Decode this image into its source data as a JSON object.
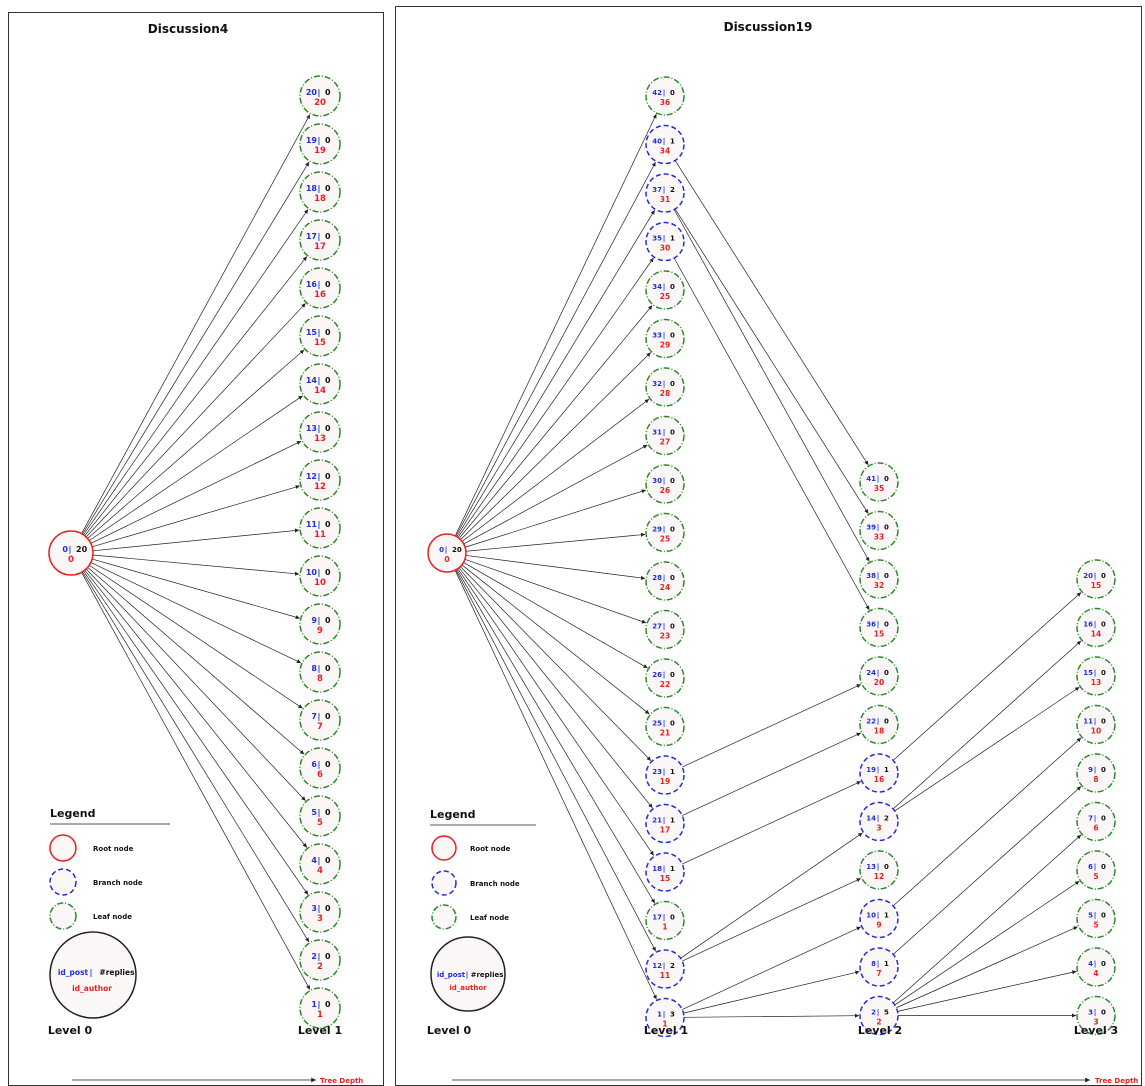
{
  "panels": [
    {
      "title": "Discussion4",
      "level_labels": [
        "Level 0",
        "Level 1"
      ],
      "nodes": [
        {
          "id": "0",
          "replies": "20",
          "author": "0",
          "type": "root"
        },
        {
          "id": "20",
          "replies": "0",
          "author": "20",
          "type": "leaf"
        },
        {
          "id": "19",
          "replies": "0",
          "author": "19",
          "type": "leaf"
        },
        {
          "id": "18",
          "replies": "0",
          "author": "18",
          "type": "leaf"
        },
        {
          "id": "17",
          "replies": "0",
          "author": "17",
          "type": "leaf"
        },
        {
          "id": "16",
          "replies": "0",
          "author": "16",
          "type": "leaf"
        },
        {
          "id": "15",
          "replies": "0",
          "author": "15",
          "type": "leaf"
        },
        {
          "id": "14",
          "replies": "0",
          "author": "14",
          "type": "leaf"
        },
        {
          "id": "13",
          "replies": "0",
          "author": "13",
          "type": "leaf"
        },
        {
          "id": "12",
          "replies": "0",
          "author": "12",
          "type": "leaf"
        },
        {
          "id": "11",
          "replies": "0",
          "author": "11",
          "type": "leaf"
        },
        {
          "id": "10",
          "replies": "0",
          "author": "10",
          "type": "leaf"
        },
        {
          "id": "9",
          "replies": "0",
          "author": "9",
          "type": "leaf"
        },
        {
          "id": "8",
          "replies": "0",
          "author": "8",
          "type": "leaf"
        },
        {
          "id": "7",
          "replies": "0",
          "author": "7",
          "type": "leaf"
        },
        {
          "id": "6",
          "replies": "0",
          "author": "6",
          "type": "leaf"
        },
        {
          "id": "5",
          "replies": "0",
          "author": "5",
          "type": "leaf"
        },
        {
          "id": "4",
          "replies": "0",
          "author": "4",
          "type": "leaf"
        },
        {
          "id": "3",
          "replies": "0",
          "author": "3",
          "type": "leaf"
        },
        {
          "id": "2",
          "replies": "0",
          "author": "2",
          "type": "leaf"
        },
        {
          "id": "1",
          "replies": "0",
          "author": "1",
          "type": "leaf"
        }
      ],
      "edges": [
        [
          "0",
          "20"
        ],
        [
          "0",
          "19"
        ],
        [
          "0",
          "18"
        ],
        [
          "0",
          "17"
        ],
        [
          "0",
          "16"
        ],
        [
          "0",
          "15"
        ],
        [
          "0",
          "14"
        ],
        [
          "0",
          "13"
        ],
        [
          "0",
          "12"
        ],
        [
          "0",
          "11"
        ],
        [
          "0",
          "10"
        ],
        [
          "0",
          "9"
        ],
        [
          "0",
          "8"
        ],
        [
          "0",
          "7"
        ],
        [
          "0",
          "6"
        ],
        [
          "0",
          "5"
        ],
        [
          "0",
          "4"
        ],
        [
          "0",
          "3"
        ],
        [
          "0",
          "2"
        ],
        [
          "0",
          "1"
        ]
      ]
    },
    {
      "title": "Discussion19",
      "level_labels": [
        "Level 0",
        "Level 1",
        "Level 2",
        "Level 3"
      ],
      "nodes": [
        {
          "id": "0",
          "replies": "20",
          "author": "0",
          "type": "root"
        },
        {
          "id": "42",
          "replies": "0",
          "author": "36",
          "type": "leaf"
        },
        {
          "id": "40",
          "replies": "1",
          "author": "34",
          "type": "branch"
        },
        {
          "id": "37",
          "replies": "2",
          "author": "31",
          "type": "branch"
        },
        {
          "id": "35",
          "replies": "1",
          "author": "30",
          "type": "branch"
        },
        {
          "id": "34",
          "replies": "0",
          "author": "25",
          "type": "leaf"
        },
        {
          "id": "33",
          "replies": "0",
          "author": "29",
          "type": "leaf"
        },
        {
          "id": "32",
          "replies": "0",
          "author": "28",
          "type": "leaf"
        },
        {
          "id": "31",
          "replies": "0",
          "author": "27",
          "type": "leaf"
        },
        {
          "id": "30",
          "replies": "0",
          "author": "26",
          "type": "leaf"
        },
        {
          "id": "29",
          "replies": "0",
          "author": "25",
          "type": "leaf"
        },
        {
          "id": "28",
          "replies": "0",
          "author": "24",
          "type": "leaf"
        },
        {
          "id": "27",
          "replies": "0",
          "author": "23",
          "type": "leaf"
        },
        {
          "id": "26",
          "replies": "0",
          "author": "22",
          "type": "leaf"
        },
        {
          "id": "25",
          "replies": "0",
          "author": "21",
          "type": "leaf"
        },
        {
          "id": "23",
          "replies": "1",
          "author": "19",
          "type": "branch"
        },
        {
          "id": "21",
          "replies": "1",
          "author": "17",
          "type": "branch"
        },
        {
          "id": "18",
          "replies": "1",
          "author": "15",
          "type": "branch"
        },
        {
          "id": "17",
          "replies": "0",
          "author": "1",
          "type": "leaf"
        },
        {
          "id": "12",
          "replies": "2",
          "author": "11",
          "type": "branch"
        },
        {
          "id": "1",
          "replies": "3",
          "author": "1",
          "type": "branch"
        },
        {
          "id": "41",
          "replies": "0",
          "author": "35",
          "type": "leaf"
        },
        {
          "id": "39",
          "replies": "0",
          "author": "33",
          "type": "leaf"
        },
        {
          "id": "38",
          "replies": "0",
          "author": "32",
          "type": "leaf"
        },
        {
          "id": "36",
          "replies": "0",
          "author": "15",
          "type": "leaf"
        },
        {
          "id": "24",
          "replies": "0",
          "author": "20",
          "type": "leaf"
        },
        {
          "id": "22",
          "replies": "0",
          "author": "18",
          "type": "leaf"
        },
        {
          "id": "19",
          "replies": "1",
          "author": "16",
          "type": "branch"
        },
        {
          "id": "14",
          "replies": "2",
          "author": "3",
          "type": "branch"
        },
        {
          "id": "13",
          "replies": "0",
          "author": "12",
          "type": "leaf"
        },
        {
          "id": "10",
          "replies": "1",
          "author": "9",
          "type": "branch"
        },
        {
          "id": "8",
          "replies": "1",
          "author": "7",
          "type": "branch"
        },
        {
          "id": "2",
          "replies": "5",
          "author": "2",
          "type": "branch"
        },
        {
          "id": "20",
          "replies": "0",
          "author": "15",
          "type": "leaf"
        },
        {
          "id": "16",
          "replies": "0",
          "author": "14",
          "type": "leaf"
        },
        {
          "id": "15",
          "replies": "0",
          "author": "13",
          "type": "leaf"
        },
        {
          "id": "11",
          "replies": "0",
          "author": "10",
          "type": "leaf"
        },
        {
          "id": "9",
          "replies": "0",
          "author": "8",
          "type": "leaf"
        },
        {
          "id": "7",
          "replies": "0",
          "author": "6",
          "type": "leaf"
        },
        {
          "id": "6",
          "replies": "0",
          "author": "5",
          "type": "leaf"
        },
        {
          "id": "5",
          "replies": "0",
          "author": "5",
          "type": "leaf"
        },
        {
          "id": "4",
          "replies": "0",
          "author": "4",
          "type": "leaf"
        },
        {
          "id": "3",
          "replies": "0",
          "author": "3",
          "type": "leaf"
        }
      ],
      "edges": [
        [
          "0",
          "42"
        ],
        [
          "0",
          "40"
        ],
        [
          "0",
          "37"
        ],
        [
          "0",
          "35"
        ],
        [
          "0",
          "34"
        ],
        [
          "0",
          "33"
        ],
        [
          "0",
          "32"
        ],
        [
          "0",
          "31"
        ],
        [
          "0",
          "30"
        ],
        [
          "0",
          "29"
        ],
        [
          "0",
          "28"
        ],
        [
          "0",
          "27"
        ],
        [
          "0",
          "26"
        ],
        [
          "0",
          "25"
        ],
        [
          "0",
          "23"
        ],
        [
          "0",
          "21"
        ],
        [
          "0",
          "18"
        ],
        [
          "0",
          "17"
        ],
        [
          "0",
          "12"
        ],
        [
          "0",
          "1"
        ],
        [
          "40",
          "41"
        ],
        [
          "37",
          "39"
        ],
        [
          "37",
          "38"
        ],
        [
          "35",
          "36"
        ],
        [
          "23",
          "24"
        ],
        [
          "21",
          "22"
        ],
        [
          "18",
          "19"
        ],
        [
          "12",
          "14"
        ],
        [
          "12",
          "13"
        ],
        [
          "1",
          "10"
        ],
        [
          "1",
          "8"
        ],
        [
          "1",
          "2"
        ],
        [
          "19",
          "20"
        ],
        [
          "14",
          "16"
        ],
        [
          "14",
          "15"
        ],
        [
          "10",
          "11"
        ],
        [
          "8",
          "9"
        ],
        [
          "2",
          "7"
        ],
        [
          "2",
          "6"
        ],
        [
          "2",
          "5"
        ],
        [
          "2",
          "4"
        ],
        [
          "2",
          "3"
        ]
      ]
    }
  ],
  "legend": {
    "title": "Legend",
    "items": [
      {
        "label": "Root node",
        "type": "root"
      },
      {
        "label": "Branch node",
        "type": "branch"
      },
      {
        "label": "Leaf node",
        "type": "leaf"
      }
    ],
    "key_post": "id_post",
    "key_sep": "|",
    "key_replies": "#replies",
    "key_author": "id_author"
  },
  "axis_label": "Tree Depth",
  "colors": {
    "root": "#e32222",
    "branch": "#1f2fd0",
    "leaf": "#2a8a2a",
    "post": "#1f2fd0",
    "author": "#e32222",
    "fill": "#fbf7f7"
  }
}
